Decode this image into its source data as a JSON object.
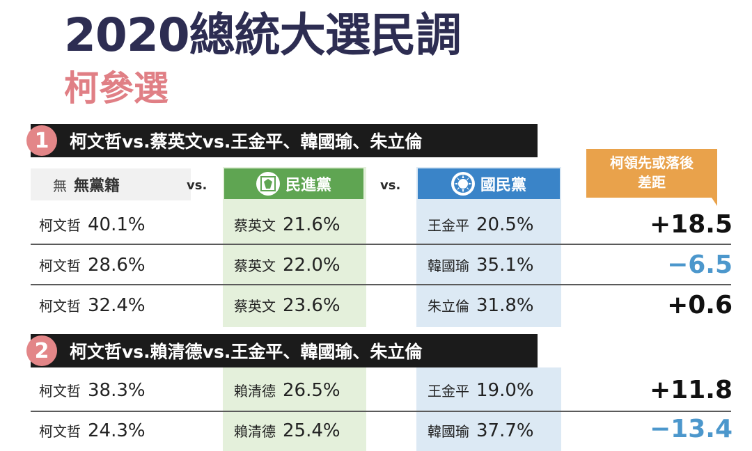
{
  "title": "2020總統大選民調",
  "subtitle": "柯參選",
  "headers": {
    "independent": {
      "icon_text": "無",
      "label": "無黨籍"
    },
    "vs1": "vs.",
    "dpp": {
      "label": "民進黨",
      "icon": "dpp-logo-icon"
    },
    "vs2": "vs.",
    "kmt": {
      "label": "國民黨",
      "icon": "kmt-sun-icon"
    },
    "lead": {
      "line1": "柯領先或落後",
      "line2": "差距"
    }
  },
  "sections": [
    {
      "num": "1",
      "text": "柯文哲vs.蔡英文vs.王金平、韓國瑜、朱立倫",
      "rows": [
        {
          "ind_name": "柯文哲",
          "ind_pct": "40.1%",
          "dpp_name": "蔡英文",
          "dpp_pct": "21.6%",
          "kmt_name": "王金平",
          "kmt_pct": "20.5%",
          "diff": "+18.5",
          "sign": "pos"
        },
        {
          "ind_name": "柯文哲",
          "ind_pct": "28.6%",
          "dpp_name": "蔡英文",
          "dpp_pct": "22.0%",
          "kmt_name": "韓國瑜",
          "kmt_pct": "35.1%",
          "diff": "−6.5",
          "sign": "neg"
        },
        {
          "ind_name": "柯文哲",
          "ind_pct": "32.4%",
          "dpp_name": "蔡英文",
          "dpp_pct": "23.6%",
          "kmt_name": "朱立倫",
          "kmt_pct": "31.8%",
          "diff": "+0.6",
          "sign": "pos"
        }
      ]
    },
    {
      "num": "2",
      "text": "柯文哲vs.賴清德vs.王金平、韓國瑜、朱立倫",
      "rows": [
        {
          "ind_name": "柯文哲",
          "ind_pct": "38.3%",
          "dpp_name": "賴清德",
          "dpp_pct": "26.5%",
          "kmt_name": "王金平",
          "kmt_pct": "19.0%",
          "diff": "+11.8",
          "sign": "pos"
        },
        {
          "ind_name": "柯文哲",
          "ind_pct": "24.3%",
          "dpp_name": "賴清德",
          "dpp_pct": "25.4%",
          "kmt_name": "韓國瑜",
          "kmt_pct": "37.7%",
          "diff": "−13.4",
          "sign": "neg"
        }
      ]
    }
  ],
  "colors": {
    "title": "#2d2d52",
    "subtitle": "#e07f85",
    "dpp": "#5fa552",
    "kmt": "#3a84c8",
    "lead": "#e9a24b",
    "negative": "#4c97cc"
  }
}
